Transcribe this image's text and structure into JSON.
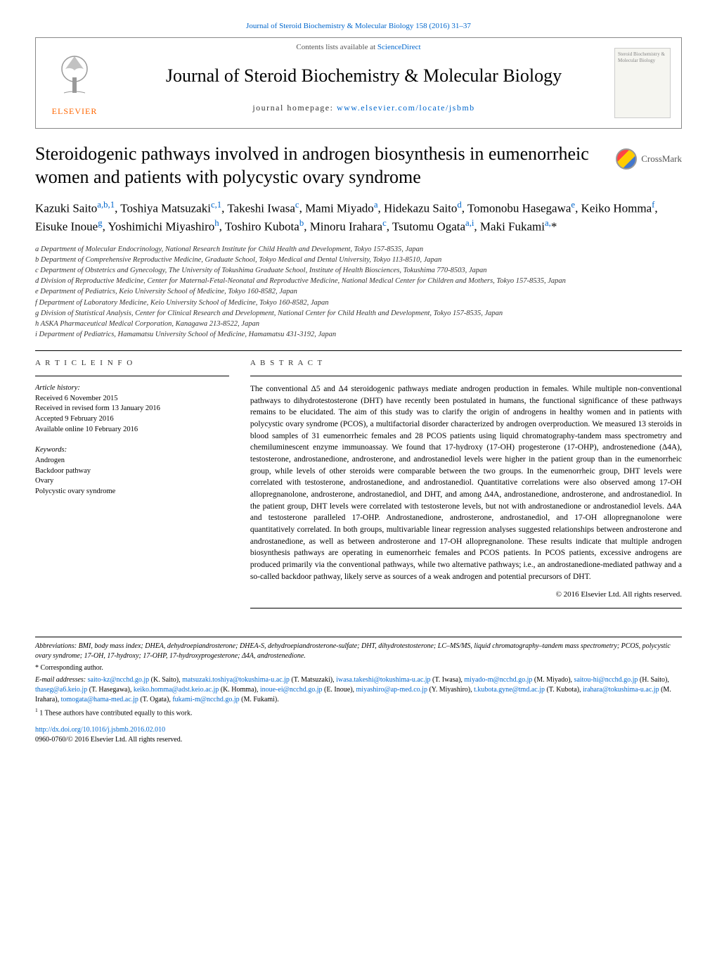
{
  "top_link": "Journal of Steroid Biochemistry & Molecular Biology 158 (2016) 31–37",
  "banner": {
    "sciencedirect_prefix": "Contents lists available at ",
    "sciencedirect_link": "ScienceDirect",
    "journal_title": "Journal of Steroid Biochemistry & Molecular Biology",
    "homepage_prefix": "journal homepage: ",
    "homepage_link": "www.elsevier.com/locate/jsbmb",
    "cover_text": "Steroid Biochemistry & Molecular Biology",
    "elsevier": "ELSEVIER"
  },
  "crossmark_label": "CrossMark",
  "article_title": "Steroidogenic pathways involved in androgen biosynthesis in eumenorrheic women and patients with polycystic ovary syndrome",
  "authors_html": "Kazuki Saito<sup class='sup'>a,b,1</sup>, Toshiya Matsuzaki<sup class='sup'>c,1</sup>, Takeshi Iwasa<sup class='sup'>c</sup>, Mami Miyado<sup class='sup'>a</sup>, Hidekazu Saito<sup class='sup'>d</sup>, Tomonobu Hasegawa<sup class='sup'>e</sup>, Keiko Homma<sup class='sup'>f</sup>, Eisuke Inoue<sup class='sup'>g</sup>, Yoshimichi Miyashiro<sup class='sup'>h</sup>, Toshiro Kubota<sup class='sup'>b</sup>, Minoru Irahara<sup class='sup'>c</sup>, Tsutomu Ogata<sup class='sup'>a,i</sup>, Maki Fukami<sup class='sup'>a,</sup>*",
  "affiliations": [
    "a Department of Molecular Endocrinology, National Research Institute for Child Health and Development, Tokyo 157-8535, Japan",
    "b Department of Comprehensive Reproductive Medicine, Graduate School, Tokyo Medical and Dental University, Tokyo 113-8510, Japan",
    "c Department of Obstetrics and Gynecology, The University of Tokushima Graduate School, Institute of Health Biosciences, Tokushima 770-8503, Japan",
    "d Division of Reproductive Medicine, Center for Maternal-Fetal-Neonatal and Reproductive Medicine, National Medical Center for Children and Mothers, Tokyo 157-8535, Japan",
    "e Department of Pediatrics, Keio University School of Medicine, Tokyo 160-8582, Japan",
    "f Department of Laboratory Medicine, Keio University School of Medicine, Tokyo 160-8582, Japan",
    "g Division of Statistical Analysis, Center for Clinical Research and Development, National Center for Child Health and Development, Tokyo 157-8535, Japan",
    "h ASKA Pharmaceutical Medical Corporation, Kanagawa 213-8522, Japan",
    "i Department of Pediatrics, Hamamatsu University School of Medicine, Hamamatsu 431-3192, Japan"
  ],
  "article_info_head": "A R T I C L E  I N F O",
  "abstract_head": "A B S T R A C T",
  "history": {
    "label": "Article history:",
    "received": "Received 6 November 2015",
    "revised": "Received in revised form 13 January 2016",
    "accepted": "Accepted 9 February 2016",
    "online": "Available online 10 February 2016"
  },
  "keywords": {
    "label": "Keywords:",
    "items": [
      "Androgen",
      "Backdoor pathway",
      "Ovary",
      "Polycystic ovary syndrome"
    ]
  },
  "abstract_text": "The conventional Δ5 and Δ4 steroidogenic pathways mediate androgen production in females. While multiple non-conventional pathways to dihydrotestosterone (DHT) have recently been postulated in humans, the functional significance of these pathways remains to be elucidated. The aim of this study was to clarify the origin of androgens in healthy women and in patients with polycystic ovary syndrome (PCOS), a multifactorial disorder characterized by androgen overproduction. We measured 13 steroids in blood samples of 31 eumenorrheic females and 28 PCOS patients using liquid chromatography-tandem mass spectrometry and chemiluminescent enzyme immunoassay. We found that 17-hydroxy (17-OH) progesterone (17-OHP), androstenedione (Δ4A), testosterone, androstanedione, androsterone, and androstanediol levels were higher in the patient group than in the eumenorrheic group, while levels of other steroids were comparable between the two groups. In the eumenorrheic group, DHT levels were correlated with testosterone, androstanedione, and androstanediol. Quantitative correlations were also observed among 17-OH allopregnanolone, androsterone, androstanediol, and DHT, and among Δ4A, androstanedione, androsterone, and androstanediol. In the patient group, DHT levels were correlated with testosterone levels, but not with androstanedione or androstanediol levels. Δ4A and testosterone paralleled 17-OHP. Androstanedione, androsterone, androstanediol, and 17-OH allopregnanolone were quantitatively correlated. In both groups, multivariable linear regression analyses suggested relationships between androsterone and androstanedione, as well as between androsterone and 17-OH allopregnanolone. These results indicate that multiple androgen biosynthesis pathways are operating in eumenorrheic females and PCOS patients. In PCOS patients, excessive androgens are produced primarily via the conventional pathways, while two alternative pathways; i.e., an androstanedione-mediated pathway and a so-called backdoor pathway, likely serve as sources of a weak androgen and potential precursors of DHT.",
  "copyright": "© 2016 Elsevier Ltd. All rights reserved.",
  "footnotes": {
    "abbreviations": "Abbreviations: BMI, body mass index; DHEA, dehydroepiandrosterone; DHEA-S, dehydroepiandrosterone-sulfate; DHT, dihydrotestosterone; LC–MS/MS, liquid chromatography–tandem mass spectrometry; PCOS, polycystic ovary syndrome; 17-OH, 17-hydroxy; 17-OHP, 17-hydroxyprogesterone; Δ4A, androstenedione.",
    "corresponding": "* Corresponding author.",
    "emails_label": "E-mail addresses: ",
    "emails_html": "<a>saito-kz@ncchd.go.jp</a> (K. Saito), <a>matsuzaki.toshiya@tokushima-u.ac.jp</a> (T. Matsuzaki), <a>iwasa.takeshi@tokushima-u.ac.jp</a> (T. Iwasa), <a>miyado-m@ncchd.go.jp</a> (M. Miyado), <a>saitou-hi@ncchd.go.jp</a> (H. Saito), <a>thaseg@a6.keio.jp</a> (T. Hasegawa), <a>keiko.homma@adst.keio.ac.jp</a> (K. Homma), <a>inoue-ei@ncchd.go.jp</a> (E. Inoue), <a>miyashiro@ap-med.co.jp</a> (Y. Miyashiro), <a>t.kubota.gyne@tmd.ac.jp</a> (T. Kubota), <a>irahara@tokushima-u.ac.jp</a> (M. Irahara), <a>tomogata@hama-med.ac.jp</a> (T. Ogata), <a>fukami-m@ncchd.go.jp</a> (M. Fukami).",
    "equal": "1 These authors have contributed equally to this work."
  },
  "doi": {
    "link": "http://dx.doi.org/10.1016/j.jsbmb.2016.02.010",
    "issn": "0960-0760/© 2016 Elsevier Ltd. All rights reserved."
  },
  "colors": {
    "link": "#0066cc",
    "elsevier": "#ff6600",
    "text": "#000000",
    "border": "#888888"
  }
}
